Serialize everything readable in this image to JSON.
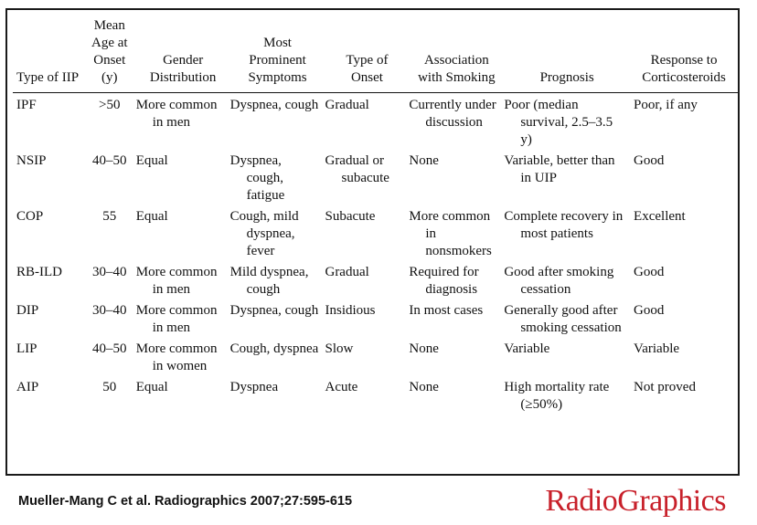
{
  "table": {
    "headers": [
      "Type of IIP",
      "Mean Age at Onset (y)",
      "Gender Distribution",
      "Most Prominent Symptoms",
      "Type of Onset",
      "Association with Smoking",
      "Prognosis",
      "Response to Corticosteroids"
    ],
    "rows": [
      [
        "IPF",
        ">50",
        "More common in men",
        "Dyspnea, cough",
        "Gradual",
        "Currently under discussion",
        "Poor (median survival, 2.5–3.5 y)",
        "Poor, if any"
      ],
      [
        "NSIP",
        "40–50",
        "Equal",
        "Dyspnea, cough, fatigue",
        "Gradual or subacute",
        "None",
        "Variable, better than in UIP",
        "Good"
      ],
      [
        "COP",
        "55",
        "Equal",
        "Cough, mild dyspnea, fever",
        "Subacute",
        "More common in nonsmokers",
        "Complete recovery in most patients",
        "Excellent"
      ],
      [
        "RB-ILD",
        "30–40",
        "More common in men",
        "Mild dyspnea, cough",
        "Gradual",
        "Required for diagnosis",
        "Good after smoking cessation",
        "Good"
      ],
      [
        "DIP",
        "30–40",
        "More common in men",
        "Dyspnea, cough",
        "Insidious",
        "In most cases",
        "Generally good after smoking cessation",
        "Good"
      ],
      [
        "LIP",
        "40–50",
        "More common in women",
        "Cough, dyspnea",
        "Slow",
        "None",
        "Variable",
        "Variable"
      ],
      [
        "AIP",
        "50",
        "Equal",
        "Dyspnea",
        "Acute",
        "None",
        "High mortality rate (≥50%)",
        "Not proved"
      ]
    ]
  },
  "citation": "Mueller-Mang C et al. Radiographics 2007;27:595-615",
  "logo": "RadioGraphics"
}
